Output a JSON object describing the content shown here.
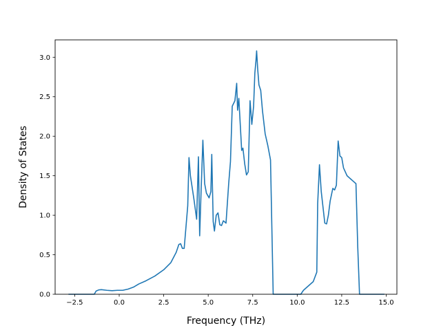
{
  "chart_data": {
    "type": "line",
    "title": "",
    "xlabel": "Frequency (THz)",
    "ylabel": "Density of States",
    "xlim": [
      -3.6,
      15.6
    ],
    "ylim": [
      0.0,
      3.22
    ],
    "grid": false,
    "legend": "none",
    "xticks": [
      -2.5,
      0.0,
      2.5,
      5.0,
      7.5,
      10.0,
      12.5,
      15.0
    ],
    "xtick_labels": [
      "−2.5",
      "0.0",
      "2.5",
      "5.0",
      "7.5",
      "10.0",
      "12.5",
      "15.0"
    ],
    "yticks": [
      0.0,
      0.5,
      1.0,
      1.5,
      2.0,
      2.5,
      3.0
    ],
    "ytick_labels": [
      "0.0",
      "0.5",
      "1.0",
      "1.5",
      "2.0",
      "2.5",
      "3.0"
    ],
    "series": [
      {
        "color": "#1f77b4",
        "x": [
          -2.85,
          -2.0,
          -1.4,
          -1.3,
          -1.15,
          -1.0,
          -0.7,
          -0.4,
          -0.1,
          0.2,
          0.5,
          0.8,
          1.1,
          1.5,
          2.0,
          2.5,
          2.9,
          3.2,
          3.35,
          3.45,
          3.55,
          3.65,
          3.75,
          3.85,
          3.92,
          4.0,
          4.2,
          4.35,
          4.45,
          4.52,
          4.6,
          4.7,
          4.8,
          4.9,
          5.05,
          5.15,
          5.2,
          5.28,
          5.35,
          5.45,
          5.55,
          5.65,
          5.75,
          5.85,
          6.0,
          6.15,
          6.25,
          6.35,
          6.5,
          6.6,
          6.65,
          6.72,
          6.8,
          6.88,
          6.95,
          7.05,
          7.15,
          7.25,
          7.35,
          7.45,
          7.55,
          7.62,
          7.68,
          7.72,
          7.78,
          7.85,
          7.95,
          8.05,
          8.2,
          8.35,
          8.5,
          8.65,
          8.8,
          9.5,
          10.2,
          10.35,
          10.6,
          10.9,
          11.1,
          11.15,
          11.25,
          11.35,
          11.55,
          11.65,
          11.75,
          11.85,
          12.0,
          12.1,
          12.2,
          12.3,
          12.4,
          12.5,
          12.6,
          12.8,
          13.0,
          13.15,
          13.3,
          13.4,
          13.5,
          14.0,
          14.9
        ],
        "y": [
          0.0,
          0.0,
          0.0,
          0.04,
          0.055,
          0.058,
          0.05,
          0.045,
          0.05,
          0.05,
          0.065,
          0.09,
          0.13,
          0.17,
          0.23,
          0.31,
          0.4,
          0.53,
          0.63,
          0.64,
          0.58,
          0.58,
          0.85,
          1.12,
          1.73,
          1.5,
          1.2,
          0.95,
          1.74,
          0.74,
          1.3,
          1.95,
          1.4,
          1.28,
          1.22,
          1.3,
          1.77,
          0.92,
          0.8,
          1.0,
          1.03,
          0.88,
          0.87,
          0.93,
          0.9,
          1.4,
          1.68,
          2.38,
          2.45,
          2.67,
          2.33,
          2.48,
          2.15,
          1.82,
          1.85,
          1.65,
          1.51,
          1.55,
          2.45,
          2.15,
          2.38,
          2.8,
          2.95,
          3.08,
          2.85,
          2.65,
          2.58,
          2.32,
          2.03,
          1.88,
          1.7,
          0.0,
          0.0,
          0.0,
          0.0,
          0.05,
          0.1,
          0.16,
          0.28,
          1.15,
          1.64,
          1.3,
          0.9,
          0.89,
          1.0,
          1.18,
          1.34,
          1.32,
          1.38,
          1.94,
          1.75,
          1.73,
          1.6,
          1.5,
          1.46,
          1.43,
          1.4,
          0.6,
          0.0,
          0.0,
          0.0
        ]
      }
    ]
  }
}
